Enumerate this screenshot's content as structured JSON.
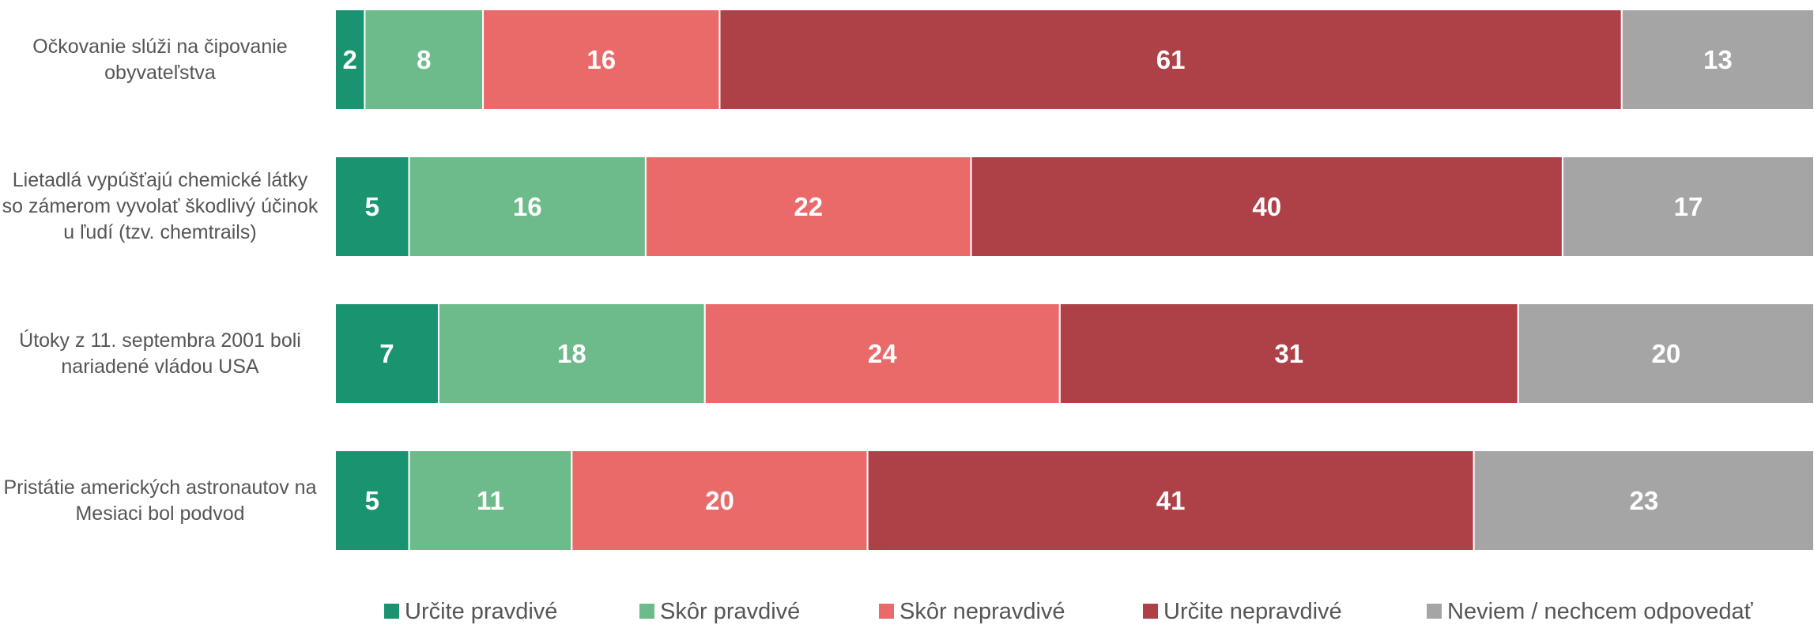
{
  "chart_data": {
    "type": "stacked-barh",
    "categories": [
      "Očkovanie slúži na čipovanie obyvateľstva",
      "Lietadlá vypúšťajú chemické látky so zámerom vyvolať škodlivý účinok u ľudí (tzv. chemtrails)",
      "Útoky z 11. septembra 2001 boli nariadené vládou USA",
      "Pristátie amerických astronautov na Mesiaci bol podvod"
    ],
    "series": [
      {
        "name": "Určite pravdivé",
        "color": "#1a9470",
        "values": [
          2,
          5,
          7,
          5
        ]
      },
      {
        "name": "Skôr pravdivé",
        "color": "#6dbb8a",
        "values": [
          8,
          16,
          18,
          11
        ]
      },
      {
        "name": "Skôr nepravdivé",
        "color": "#e96a69",
        "values": [
          16,
          22,
          24,
          20
        ]
      },
      {
        "name": "Určite nepravdivé",
        "color": "#ae4048",
        "values": [
          61,
          40,
          31,
          41
        ]
      },
      {
        "name": "Neviem / nechcem odpovedať",
        "color": "#a5a5a5",
        "values": [
          13,
          17,
          20,
          23
        ]
      }
    ],
    "xlim": [
      0,
      100
    ],
    "legend": "bottom"
  }
}
